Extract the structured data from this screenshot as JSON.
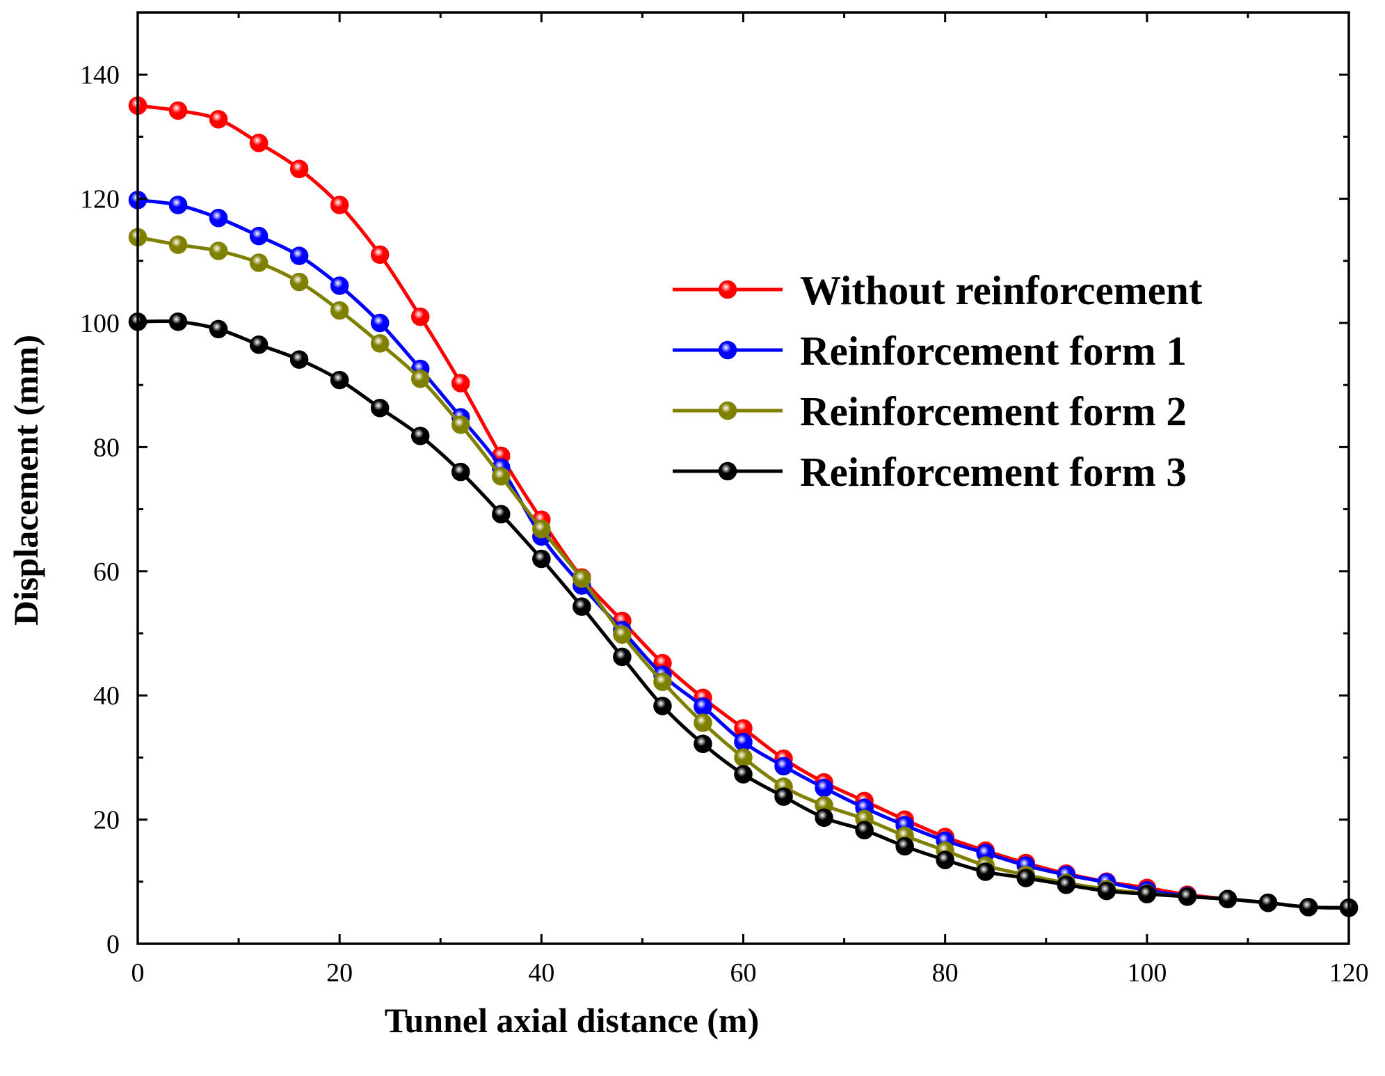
{
  "chart_data": {
    "type": "line",
    "title": "",
    "xlabel": "Tunnel axial distance (m)",
    "ylabel": "Displacement (mm)",
    "xlim": [
      0,
      120
    ],
    "ylim": [
      0,
      150
    ],
    "xticks": [
      0,
      20,
      40,
      60,
      80,
      100,
      120
    ],
    "yticks": [
      0,
      20,
      40,
      60,
      80,
      100,
      120,
      140
    ],
    "xtick_labels": [
      "0",
      "20",
      "40",
      "60",
      "80",
      "100",
      "120"
    ],
    "ytick_labels": [
      "0",
      "20",
      "40",
      "60",
      "80",
      "100",
      "120",
      "140"
    ],
    "grid": false,
    "legend_position": "right",
    "series": [
      {
        "name": "Without reinforcement",
        "color": "#ff0000",
        "x": [
          0,
          4,
          8,
          12,
          16,
          20,
          24,
          28,
          32,
          36,
          40,
          44,
          48,
          52,
          56,
          60,
          64,
          68,
          72,
          76,
          80,
          84,
          88,
          92,
          96,
          100,
          104,
          108,
          112,
          116,
          120
        ],
        "y": [
          135,
          134.2,
          132.8,
          129,
          124.8,
          119,
          111,
          101,
          90.3,
          78.6,
          68.3,
          59,
          52,
          45.2,
          39.6,
          34.7,
          29.8,
          26,
          23,
          20,
          17.2,
          15,
          13,
          11.3,
          10,
          9,
          7.9,
          7.2,
          6.6,
          5.9,
          5.8
        ]
      },
      {
        "name": "Reinforcement form 1",
        "color": "#0000ff",
        "x": [
          0,
          4,
          8,
          12,
          16,
          20,
          24,
          28,
          32,
          36,
          40,
          44,
          48,
          52,
          56,
          60,
          64,
          68,
          72,
          76,
          80,
          84,
          88,
          92,
          96,
          100,
          104,
          108,
          112,
          116,
          120
        ],
        "y": [
          119.8,
          119,
          116.9,
          114,
          110.8,
          106,
          100,
          92.6,
          84.8,
          76.7,
          65.6,
          57.7,
          50.5,
          43.3,
          38.2,
          32.5,
          28.6,
          25.1,
          21.9,
          19.1,
          16.6,
          14.6,
          12.6,
          11.1,
          9.9,
          8.6,
          7.7,
          7.2,
          6.6,
          5.9,
          5.8
        ]
      },
      {
        "name": "Reinforcement form 2",
        "color": "#808000",
        "x": [
          0,
          4,
          8,
          12,
          16,
          20,
          24,
          28,
          32,
          36,
          40,
          44,
          48,
          52,
          56,
          60,
          64,
          68,
          72,
          76,
          80,
          84,
          88,
          92,
          96,
          100,
          104,
          108,
          112,
          116,
          120
        ],
        "y": [
          113.8,
          112.6,
          111.6,
          109.7,
          106.6,
          102,
          96.7,
          91,
          83.6,
          75.3,
          66.8,
          58.8,
          49.8,
          42.2,
          35.6,
          30,
          25.3,
          22.3,
          20.1,
          17.4,
          15,
          12.6,
          11.1,
          9.8,
          8.8,
          8.1,
          7.6,
          7.2,
          6.6,
          5.9,
          5.8
        ]
      },
      {
        "name": "Reinforcement form 3",
        "color": "#000000",
        "x": [
          0,
          4,
          8,
          12,
          16,
          20,
          24,
          28,
          32,
          36,
          40,
          44,
          48,
          52,
          56,
          60,
          64,
          68,
          72,
          76,
          80,
          84,
          88,
          92,
          96,
          100,
          104,
          108,
          112,
          116,
          120
        ],
        "y": [
          100.2,
          100.2,
          99,
          96.5,
          94.1,
          90.8,
          86.3,
          81.8,
          76,
          69.2,
          62,
          54.3,
          46.2,
          38.3,
          32.2,
          27.3,
          23.7,
          20.3,
          18.3,
          15.7,
          13.5,
          11.6,
          10.6,
          9.5,
          8.5,
          8,
          7.6,
          7.2,
          6.6,
          5.9,
          5.8
        ]
      }
    ]
  }
}
